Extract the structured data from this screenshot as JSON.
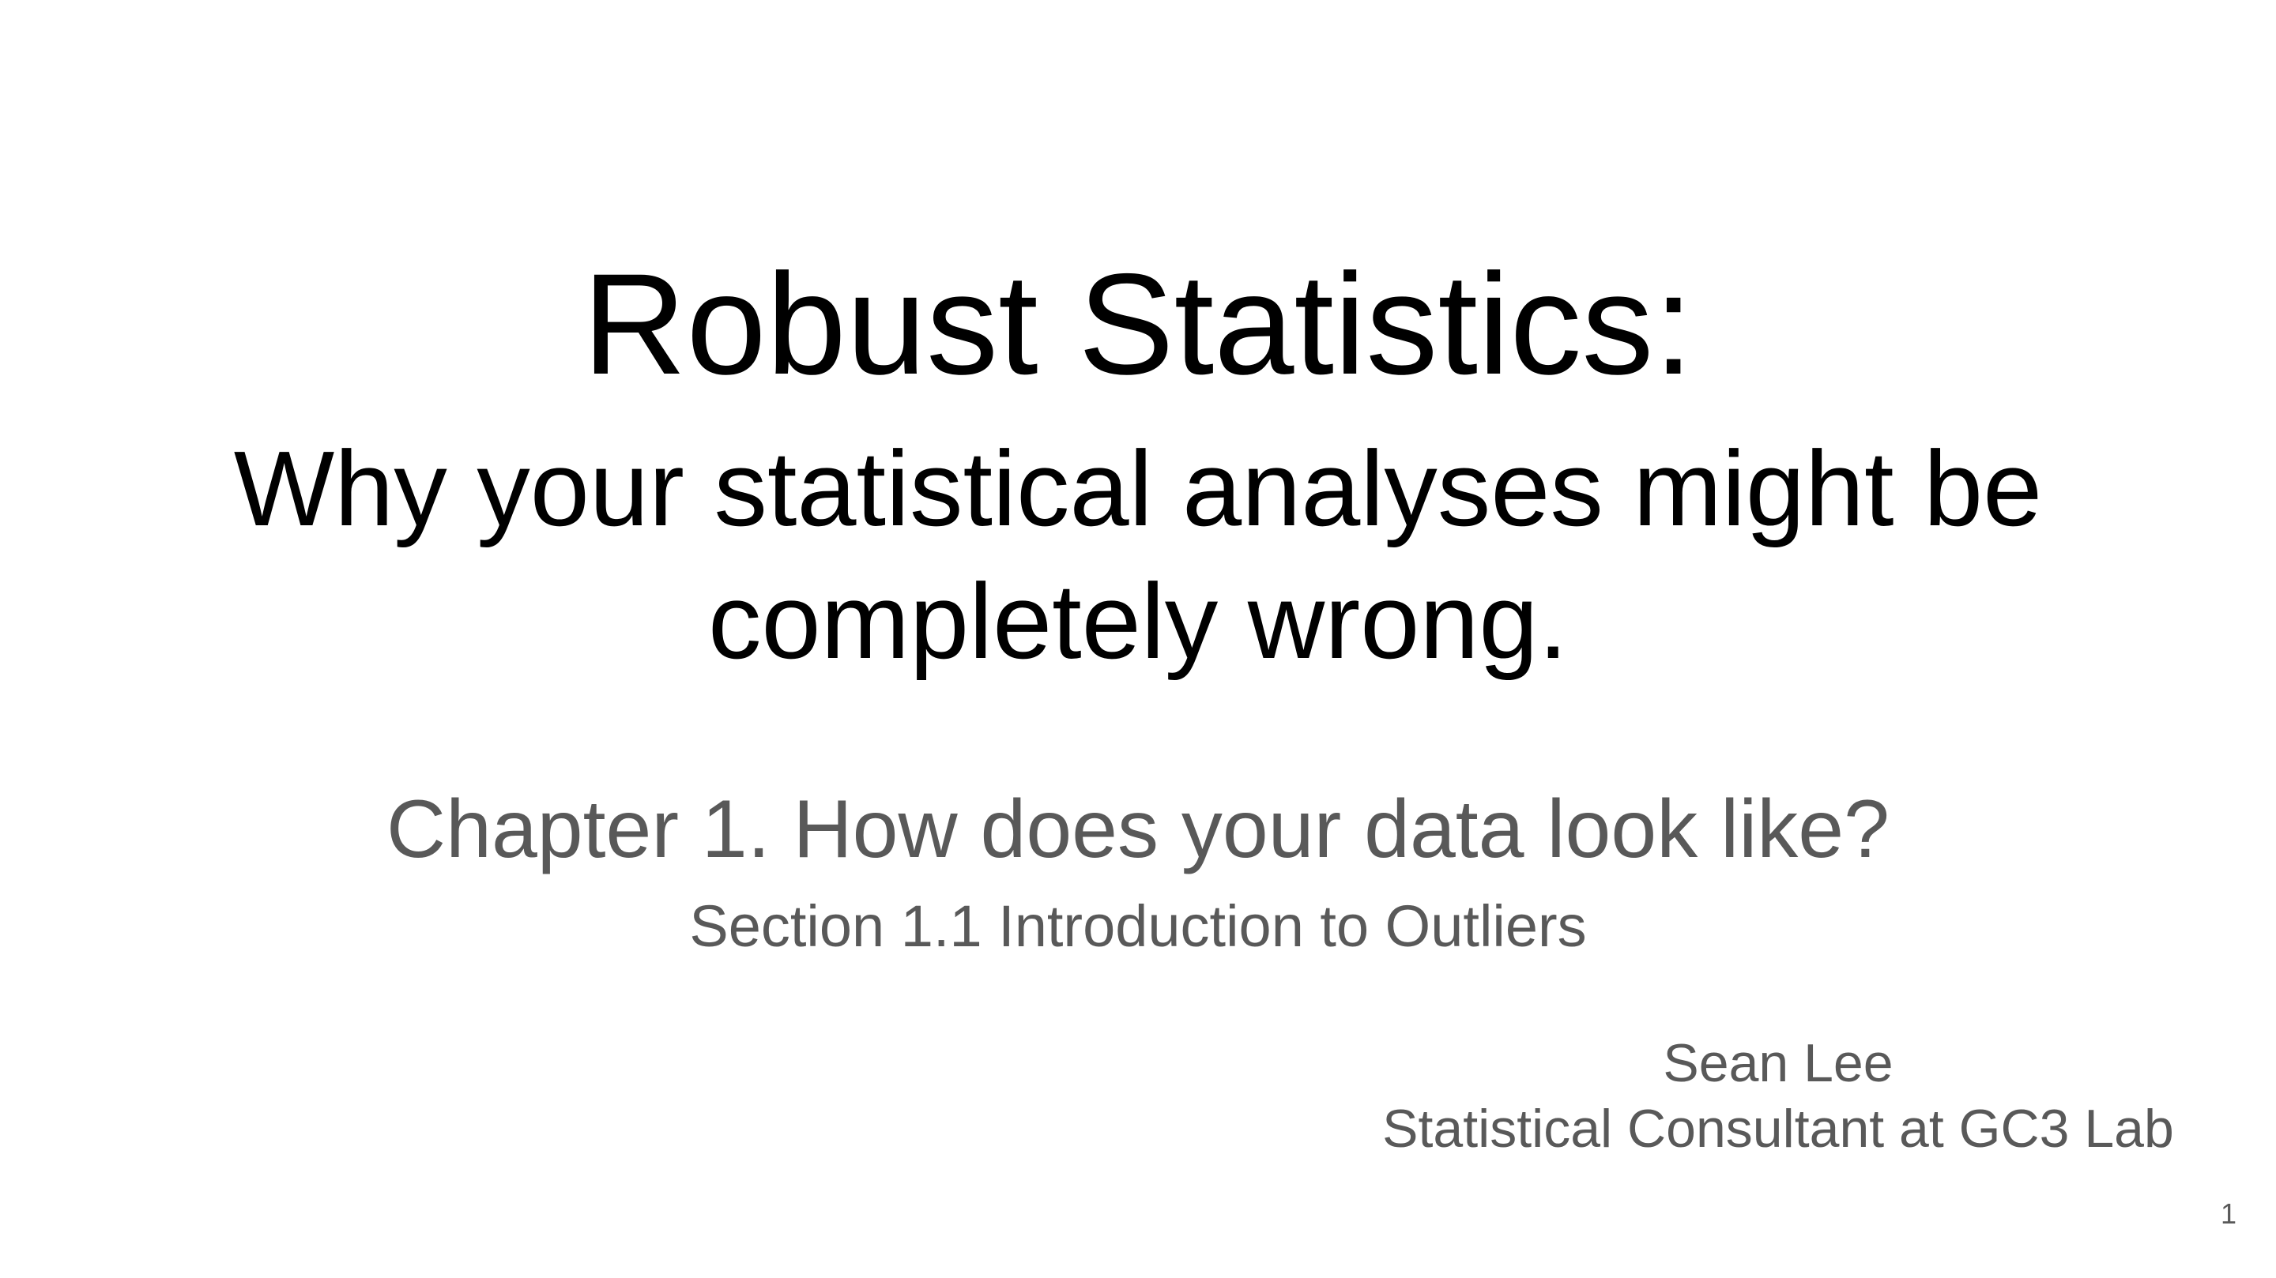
{
  "slide": {
    "title": "Robust Statistics:",
    "subtitle_line1": "Why your statistical analyses might be",
    "subtitle_line2": "completely wrong.",
    "chapter": "Chapter 1. How does your data look like?",
    "section": "Section 1.1 Introduction to Outliers",
    "author": "Sean Lee",
    "affiliation": "Statistical Consultant at GC3 Lab",
    "page_number": "1"
  },
  "colors": {
    "background": "#ffffff",
    "title_text": "#000000",
    "secondary_text": "#595959"
  }
}
